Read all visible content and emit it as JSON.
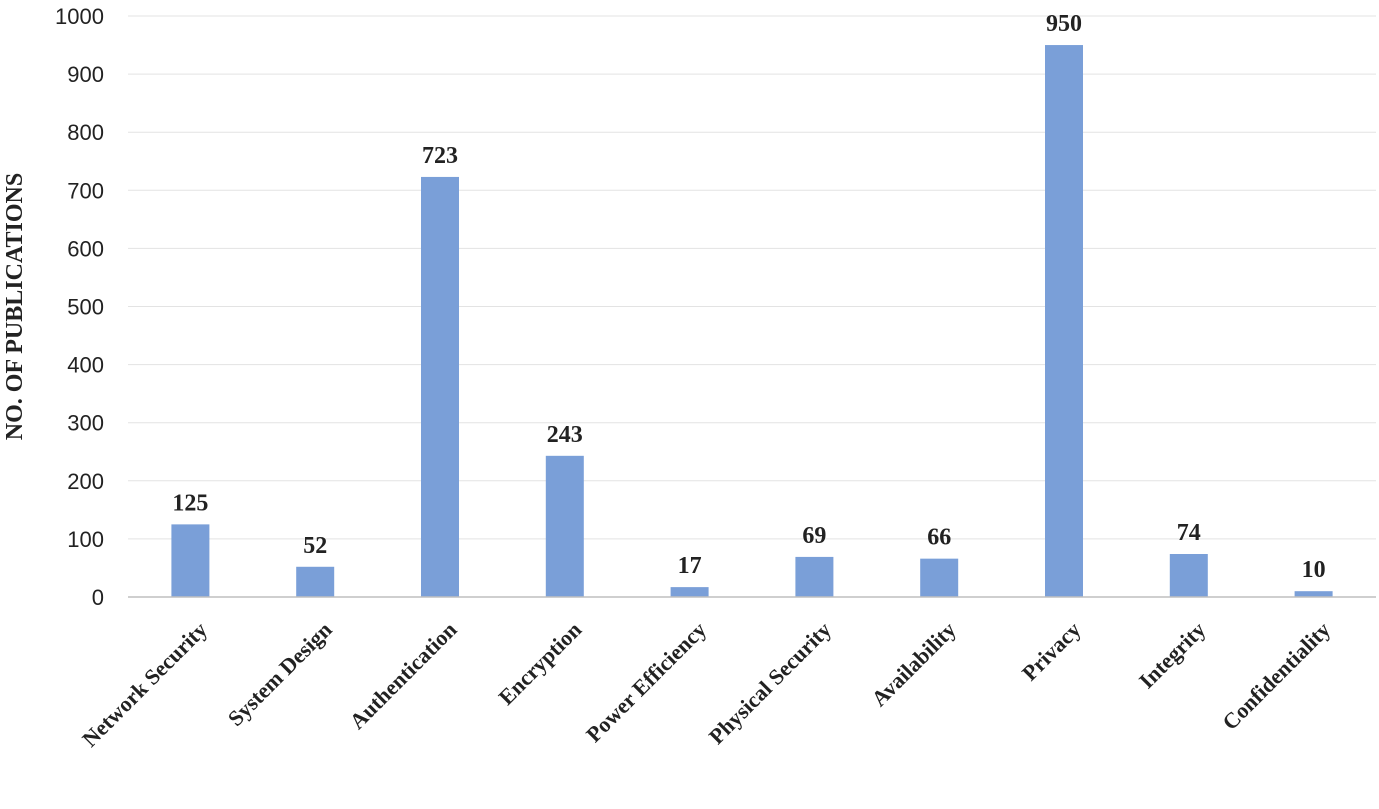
{
  "chart_data": {
    "type": "bar",
    "categories": [
      "Network Security",
      "System Design",
      "Authentication",
      "Encryption",
      "Power Efficiency",
      "Physical Security",
      "Availability",
      "Privacy",
      "Integrity",
      "Confidentiality"
    ],
    "values": [
      125,
      52,
      723,
      243,
      17,
      69,
      66,
      950,
      74,
      10
    ],
    "title": "",
    "xlabel": "",
    "ylabel": "NO. OF PUBLICATIONS",
    "ylim": [
      0,
      1000
    ],
    "yticks": [
      0,
      100,
      200,
      300,
      400,
      500,
      600,
      700,
      800,
      900,
      1000
    ],
    "bar_color": "#7a9fd8",
    "grid": true,
    "legend": "none",
    "data_labels": true
  }
}
